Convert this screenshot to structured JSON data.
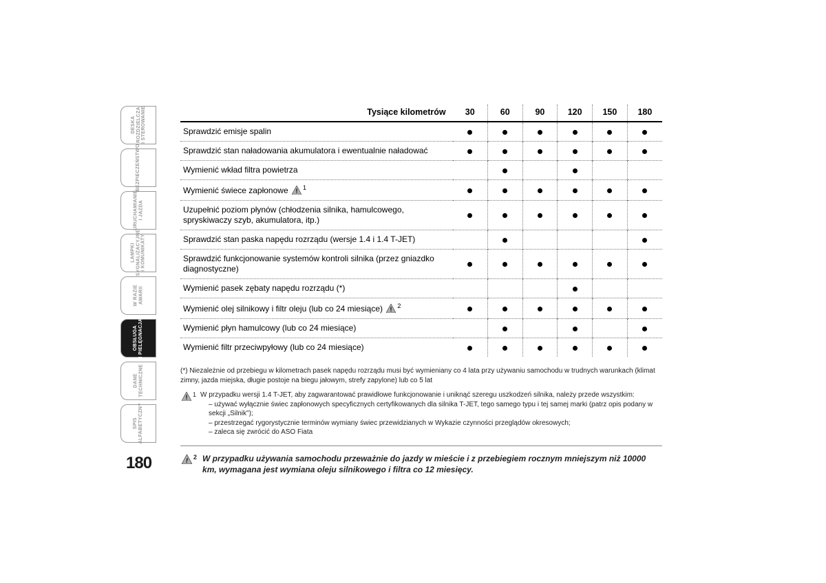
{
  "page_number": "180",
  "tabs": [
    {
      "label": "DESKA\nROZDZIELCZA\nI STEROWANIE",
      "active": false
    },
    {
      "label": "BEZPIECZEŃSTWO",
      "active": false
    },
    {
      "label": "URUCHAMIANIE\nI JAZDA",
      "active": false
    },
    {
      "label": "LAMPKI\nSYGNALIZACYJNE\nI KOMUNIKATY",
      "active": false
    },
    {
      "label": "W RAZIE\nAWARII",
      "active": false
    },
    {
      "label": "OBSŁUGA\nI PIELĘGNACJA",
      "active": true
    },
    {
      "label": "DANE\nTECHNICZNE",
      "active": false
    },
    {
      "label": "SPIS\nALFABETYCZNY",
      "active": false
    }
  ],
  "table": {
    "header_label": "Tysiące kilometrów",
    "columns": [
      "30",
      "60",
      "90",
      "120",
      "150",
      "180"
    ],
    "rows": [
      {
        "desc": "Sprawdzić emisje spalin",
        "marks": [
          1,
          1,
          1,
          1,
          1,
          1
        ],
        "icon": null
      },
      {
        "desc": "Sprawdzić stan naładowania akumulatora i ewentualnie naładować",
        "marks": [
          1,
          1,
          1,
          1,
          1,
          1
        ],
        "icon": null
      },
      {
        "desc": "Wymienić wkład filtra powietrza",
        "marks": [
          0,
          1,
          0,
          1,
          0,
          0
        ],
        "icon": null
      },
      {
        "desc": "Wymienić świece zapłonowe",
        "marks": [
          1,
          1,
          1,
          1,
          1,
          1
        ],
        "icon": "1"
      },
      {
        "desc": "Uzupełnić poziom płynów (chłodzenia silnika, hamulcowego, spryskiwaczy szyb, akumulatora, itp.)",
        "marks": [
          1,
          1,
          1,
          1,
          1,
          1
        ],
        "icon": null
      },
      {
        "desc": "Sprawdzić stan paska napędu rozrządu (wersje 1.4 i 1.4 T-JET)",
        "marks": [
          0,
          1,
          0,
          0,
          0,
          1
        ],
        "icon": null
      },
      {
        "desc": "Sprawdzić funkcjonowanie systemów kontroli silnika (przez gniazdko diagnostyczne)",
        "marks": [
          1,
          1,
          1,
          1,
          1,
          1
        ],
        "icon": null
      },
      {
        "desc": "Wymienić pasek zębaty napędu rozrządu (*)",
        "marks": [
          0,
          0,
          0,
          1,
          0,
          0
        ],
        "icon": null
      },
      {
        "desc": "Wymienić olej silnikowy i filtr oleju (lub co 24 miesiące)",
        "marks": [
          1,
          1,
          1,
          1,
          1,
          1
        ],
        "icon": "2"
      },
      {
        "desc": "Wymienić płyn hamulcowy (lub co 24 miesiące)",
        "marks": [
          0,
          1,
          0,
          1,
          0,
          1
        ],
        "icon": null
      },
      {
        "desc": "Wymienić filtr przeciwpyłowy (lub co 24 miesiące)",
        "marks": [
          1,
          1,
          1,
          1,
          1,
          1
        ],
        "icon": null
      }
    ]
  },
  "footnote_star": "(*) Niezależnie od przebiegu w kilometrach pasek napędu rozrządu musi być wymieniany co 4 lata przy używaniu samochodu w trudnych warunkach (klimat zimny, jazda miejska, długie postoje na biegu jałowym, strefy zapylone) lub co 5 lat",
  "footnote_1_intro": "W przypadku wersji 1.4 T-JET, aby zagwarantować prawidłowe funkcjonowanie i uniknąć szeregu uszkodzeń silnika, należy przede wszystkim:",
  "footnote_1_items": [
    "używać wyłącznie świec zapłonowych specyficznych certyfikowanych dla silnika T-JET, tego samego typu i tej samej marki (patrz opis podany w sekcji „Silnik\");",
    "przestrzegać rygorystycznie terminów wymiany świec przewidzianych w Wykazie czynności przeglądów okresowych;",
    "zaleca się zwrócić do ASO Fiata"
  ],
  "note_2": "W przypadku używania samochodu przeważnie do jazdy w mieście i z przebiegiem rocznym mniejszym niż 10000 km, wymagana jest wymiana oleju silnikowego i filtra co 12 miesięcy.",
  "colors": {
    "text": "#1a1a1a",
    "tab_border": "#9a9a9a",
    "tab_inactive_text": "#9a9a9a",
    "tab_active_bg": "#1a1a1a",
    "dotted": "#7a7a7a"
  }
}
